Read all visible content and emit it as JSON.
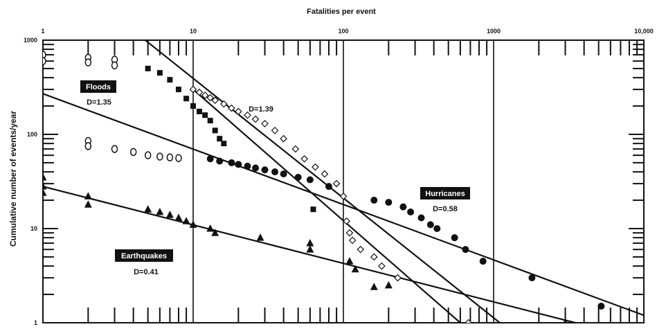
{
  "chart_data": {
    "type": "scatter",
    "title": "Fatalities per event",
    "xlabel": "",
    "ylabel": "Cumulative number of events/year",
    "x_scale": "log",
    "y_scale": "log",
    "xlim": [
      1,
      10000
    ],
    "ylim": [
      1,
      1000
    ],
    "x_tick_labels": [
      "1",
      "10",
      "100",
      "1000",
      "10,000"
    ],
    "y_tick_labels": [
      "1",
      "10",
      "100",
      "1000"
    ],
    "grid": "vertical lines at decades",
    "series": [
      {
        "name": "Floods",
        "marker": "filled-square",
        "points": [
          [
            5,
            500
          ],
          [
            6,
            450
          ],
          [
            7,
            380
          ],
          [
            8,
            300
          ],
          [
            9,
            240
          ],
          [
            10,
            200
          ],
          [
            11,
            175
          ],
          [
            12,
            160
          ],
          [
            13,
            140
          ],
          [
            14,
            110
          ],
          [
            15,
            90
          ],
          [
            16,
            80
          ],
          [
            63,
            16
          ]
        ]
      },
      {
        "name": "Floods (open circles)",
        "marker": "open-circle",
        "points": [
          [
            1,
            700
          ],
          [
            1,
            600
          ],
          [
            2,
            650
          ],
          [
            2,
            580
          ],
          [
            3,
            620
          ],
          [
            3,
            540
          ],
          [
            2,
            85
          ],
          [
            2,
            75
          ],
          [
            3,
            70
          ],
          [
            4,
            65
          ],
          [
            5,
            60
          ],
          [
            6,
            58
          ],
          [
            7,
            57
          ],
          [
            8,
            56
          ]
        ]
      },
      {
        "name": "Hurricanes",
        "marker": "filled-circle",
        "points": [
          [
            13,
            55
          ],
          [
            15,
            52
          ],
          [
            18,
            50
          ],
          [
            20,
            48
          ],
          [
            23,
            46
          ],
          [
            26,
            44
          ],
          [
            30,
            42
          ],
          [
            35,
            40
          ],
          [
            40,
            38
          ],
          [
            50,
            35
          ],
          [
            60,
            33
          ],
          [
            80,
            28
          ],
          [
            160,
            20
          ],
          [
            200,
            19
          ],
          [
            250,
            17
          ],
          [
            280,
            15
          ],
          [
            330,
            13
          ],
          [
            380,
            11
          ],
          [
            420,
            10
          ],
          [
            550,
            8
          ],
          [
            650,
            6
          ],
          [
            850,
            4.5
          ],
          [
            1800,
            3
          ],
          [
            5200,
            1.5
          ]
        ]
      },
      {
        "name": "Earthquakes",
        "marker": "filled-triangle",
        "points": [
          [
            1,
            35
          ],
          [
            1,
            28
          ],
          [
            1,
            24
          ],
          [
            2,
            22
          ],
          [
            2,
            18
          ],
          [
            5,
            16
          ],
          [
            6,
            15
          ],
          [
            7,
            14
          ],
          [
            8,
            13
          ],
          [
            9,
            12
          ],
          [
            10,
            11
          ],
          [
            13,
            10
          ],
          [
            14,
            9
          ],
          [
            28,
            8
          ],
          [
            60,
            7
          ],
          [
            60,
            6
          ],
          [
            110,
            4.5
          ],
          [
            120,
            3.7
          ],
          [
            160,
            2.4
          ],
          [
            200,
            2.5
          ],
          [
            3000,
            1
          ]
        ]
      },
      {
        "name": "D=1.39 series (open diamonds)",
        "marker": "open-diamond",
        "points": [
          [
            10,
            300
          ],
          [
            11,
            280
          ],
          [
            12,
            260
          ],
          [
            13,
            245
          ],
          [
            14,
            230
          ],
          [
            16,
            210
          ],
          [
            18,
            190
          ],
          [
            20,
            175
          ],
          [
            23,
            160
          ],
          [
            26,
            145
          ],
          [
            30,
            130
          ],
          [
            35,
            110
          ],
          [
            40,
            90
          ],
          [
            48,
            70
          ],
          [
            55,
            55
          ],
          [
            65,
            45
          ],
          [
            75,
            38
          ],
          [
            90,
            30
          ],
          [
            100,
            22
          ],
          [
            105,
            12
          ],
          [
            110,
            9
          ],
          [
            115,
            7.5
          ],
          [
            130,
            6
          ],
          [
            160,
            5
          ],
          [
            180,
            4
          ],
          [
            230,
            3
          ],
          [
            680,
            1
          ]
        ]
      }
    ],
    "fit_lines": [
      {
        "label": "Floods",
        "slope_label": "D=1.35",
        "from": [
          4.8,
          1000
        ],
        "to": [
          1100,
          1
        ]
      },
      {
        "label": "",
        "slope_label": "D=1.39",
        "from": [
          10,
          300
        ],
        "to": [
          600,
          1
        ]
      },
      {
        "label": "Hurricanes",
        "slope_label": "D=0.58",
        "from": [
          1,
          270
        ],
        "to": [
          10000,
          1.2
        ]
      },
      {
        "label": "Earthquakes",
        "slope_label": "D=0.41",
        "from": [
          1,
          28
        ],
        "to": [
          3500,
          1
        ]
      }
    ],
    "annotations": {
      "floods_label": "Floods",
      "floods_d": "D=1.35",
      "d139": "D=1.39",
      "hurricanes_label": "Hurricanes",
      "hurricanes_d": "D=0.58",
      "earthquakes_label": "Earthquakes",
      "earthquakes_d": "D=0.41"
    }
  }
}
